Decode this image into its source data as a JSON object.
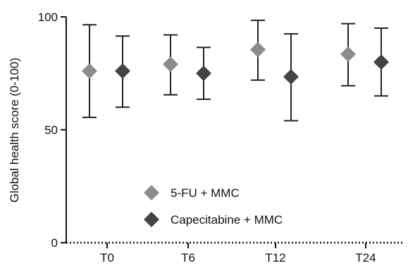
{
  "chart_data": {
    "type": "scatter",
    "title": "",
    "xlabel": "",
    "ylabel": "Global health score (0-100)",
    "categories": [
      "T0",
      "T6",
      "T12",
      "T24"
    ],
    "ylim": [
      0,
      100
    ],
    "yticks": [
      0,
      50,
      100
    ],
    "legend_position": "bottom-left",
    "grid": false,
    "series": [
      {
        "name": "5-FU + MMC",
        "color": "#8c8c8c",
        "marker": "diamond",
        "values": [
          76,
          79,
          85.5,
          83.5
        ],
        "upper": [
          96.5,
          92,
          98.5,
          97
        ],
        "lower": [
          55.5,
          65.5,
          72,
          69.5
        ]
      },
      {
        "name": "Capecitabine + MMC",
        "color": "#444444",
        "marker": "diamond",
        "values": [
          76,
          75,
          73.5,
          80
        ],
        "upper": [
          91.5,
          86.5,
          92.5,
          95
        ],
        "lower": [
          60,
          63.5,
          54,
          65
        ]
      }
    ]
  }
}
